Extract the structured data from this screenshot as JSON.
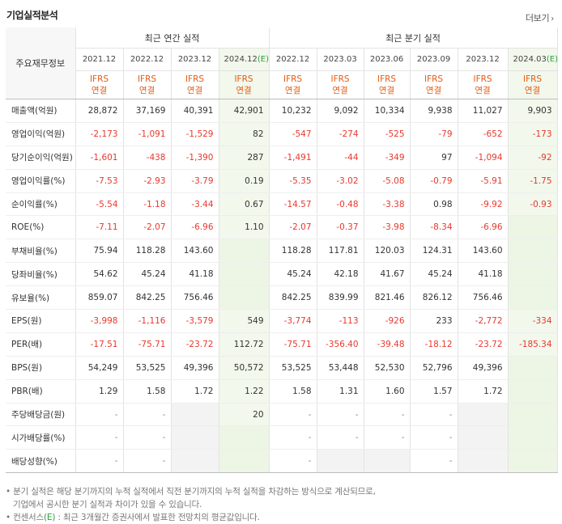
{
  "header": {
    "title": "기업실적분석",
    "more_label": "더보기",
    "more_icon": "chevron-right-icon"
  },
  "table": {
    "row_header": "주요재무정보",
    "annual_group": "최근 연간 실적",
    "quarter_group": "최근 분기 실적",
    "annual_periods": [
      "2021.12",
      "2022.12",
      "2023.12",
      "2024.12"
    ],
    "annual_estimate_suffix": "(E)",
    "quarter_periods": [
      "2022.12",
      "2023.03",
      "2023.06",
      "2023.09",
      "2023.12",
      "2024.03"
    ],
    "quarter_estimate_suffix": "(E)",
    "basis_top": "IFRS",
    "basis_bottom": "연결",
    "rows": [
      {
        "label": "매출액(억원)",
        "annual": [
          "28,872",
          "37,169",
          "40,391",
          "42,901"
        ],
        "quarter": [
          "10,232",
          "9,092",
          "10,334",
          "9,938",
          "11,027",
          "9,903"
        ]
      },
      {
        "label": "영업이익(억원)",
        "annual": [
          "-2,173",
          "-1,091",
          "-1,529",
          "82"
        ],
        "quarter": [
          "-547",
          "-274",
          "-525",
          "-79",
          "-652",
          "-173"
        ]
      },
      {
        "label": "당기순이익(억원)",
        "annual": [
          "-1,601",
          "-438",
          "-1,390",
          "287"
        ],
        "quarter": [
          "-1,491",
          "-44",
          "-349",
          "97",
          "-1,094",
          "-92"
        ]
      },
      {
        "label": "영업이익률(%)",
        "annual": [
          "-7.53",
          "-2.93",
          "-3.79",
          "0.19"
        ],
        "quarter": [
          "-5.35",
          "-3.02",
          "-5.08",
          "-0.79",
          "-5.91",
          "-1.75"
        ]
      },
      {
        "label": "순이익률(%)",
        "annual": [
          "-5.54",
          "-1.18",
          "-3.44",
          "0.67"
        ],
        "quarter": [
          "-14.57",
          "-0.48",
          "-3.38",
          "0.98",
          "-9.92",
          "-0.93"
        ]
      },
      {
        "label": "ROE(%)",
        "annual": [
          "-7.11",
          "-2.07",
          "-6.96",
          "1.10"
        ],
        "quarter": [
          "-2.07",
          "-0.37",
          "-3.98",
          "-8.34",
          "-6.96",
          ""
        ]
      },
      {
        "label": "부채비율(%)",
        "annual": [
          "75.94",
          "118.28",
          "143.60",
          ""
        ],
        "quarter": [
          "118.28",
          "117.81",
          "120.03",
          "124.31",
          "143.60",
          ""
        ]
      },
      {
        "label": "당좌비율(%)",
        "annual": [
          "54.62",
          "45.24",
          "41.18",
          ""
        ],
        "quarter": [
          "45.24",
          "42.18",
          "41.67",
          "45.24",
          "41.18",
          ""
        ]
      },
      {
        "label": "유보율(%)",
        "annual": [
          "859.07",
          "842.25",
          "756.46",
          ""
        ],
        "quarter": [
          "842.25",
          "839.99",
          "821.46",
          "826.12",
          "756.46",
          ""
        ]
      },
      {
        "label": "EPS(원)",
        "annual": [
          "-3,998",
          "-1,116",
          "-3,579",
          "549"
        ],
        "quarter": [
          "-3,774",
          "-113",
          "-926",
          "233",
          "-2,772",
          "-334"
        ]
      },
      {
        "label": "PER(배)",
        "annual": [
          "-17.51",
          "-75.71",
          "-23.72",
          "112.72"
        ],
        "quarter": [
          "-75.71",
          "-356.40",
          "-39.48",
          "-18.12",
          "-23.72",
          "-185.34"
        ]
      },
      {
        "label": "BPS(원)",
        "annual": [
          "54,249",
          "53,525",
          "49,396",
          "50,572"
        ],
        "quarter": [
          "53,525",
          "53,448",
          "52,530",
          "52,796",
          "49,396",
          ""
        ]
      },
      {
        "label": "PBR(배)",
        "annual": [
          "1.29",
          "1.58",
          "1.72",
          "1.22"
        ],
        "quarter": [
          "1.58",
          "1.31",
          "1.60",
          "1.57",
          "1.72",
          ""
        ]
      },
      {
        "label": "주당배당금(원)",
        "annual": [
          "-",
          "-",
          "",
          "20"
        ],
        "quarter": [
          "-",
          "-",
          "-",
          "-",
          "",
          ""
        ]
      },
      {
        "label": "시가배당률(%)",
        "annual": [
          "-",
          "-",
          "",
          ""
        ],
        "quarter": [
          "-",
          "-",
          "-",
          "-",
          "",
          ""
        ]
      },
      {
        "label": "배당성향(%)",
        "annual": [
          "-",
          "-",
          "",
          ""
        ],
        "quarter": [
          "-",
          "",
          "",
          "-",
          "",
          ""
        ]
      }
    ]
  },
  "notes": {
    "line1": "분기 실적은 해당 분기까지의 누적 실적에서 직전 분기까지의 누적 실적을 차감하는 방식으로 계산되므로,",
    "line2": "기업에서 공시한 분기 실적과 차이가 있을 수 있습니다.",
    "line3_prefix": "컨센서스",
    "line3_mark": "(E)",
    "line3_rest": ": 최근 3개월간 증권사에서 발표한 전망치의 평균값입니다."
  },
  "colors": {
    "negative": "#e8382d",
    "basis": "#e35b12",
    "estimate_bg": "#f2f8ec",
    "estimate_mark": "#2e9b3b"
  }
}
